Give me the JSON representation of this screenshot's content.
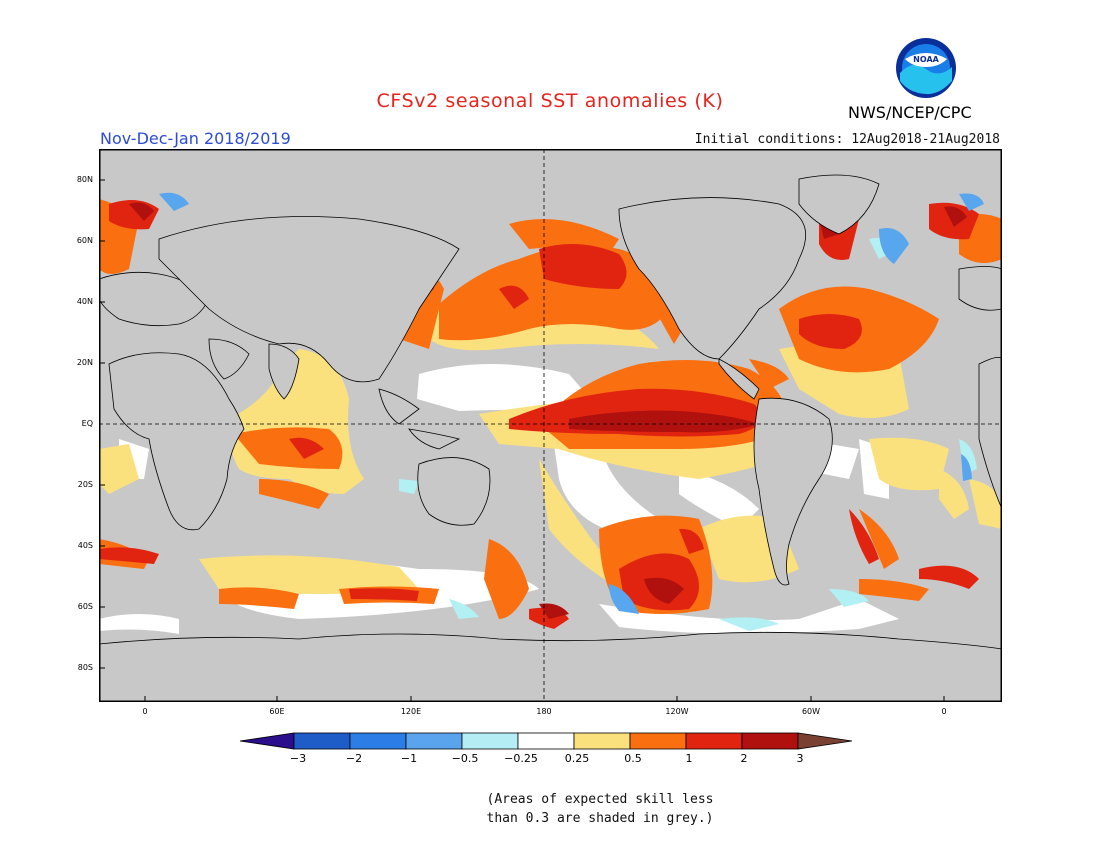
{
  "title": "CFSv2 seasonal SST anomalies (K)",
  "season": "Nov-Dec-Jan 2018/2019",
  "initial_conditions": "Initial conditions: 12Aug2018-21Aug2018",
  "agency": "NWS/NCEP/CPC",
  "logo_text": "NOAA",
  "map": {
    "lat_labels": [
      "80N",
      "60N",
      "40N",
      "20N",
      "EQ",
      "20S",
      "40S",
      "60S",
      "80S"
    ],
    "lon_labels": [
      "0",
      "60E",
      "120E",
      "180",
      "120W",
      "60W",
      "0"
    ],
    "colors": {
      "land": "#c8c8c8",
      "skill_mask": "#c8c8c8",
      "a_0_25": "#fbe17e",
      "a_0_5": "#fa6f10",
      "a_1": "#e02410",
      "a_2": "#b0100e",
      "n_0_25": "#b3f0f4",
      "n_0_5": "#58a6ee",
      "n_1": "#3a74dc"
    }
  },
  "colorbar": {
    "labels": [
      "−3",
      "−2",
      "−1",
      "−0.5",
      "−0.25",
      "0.25",
      "0.5",
      "1",
      "2",
      "3"
    ],
    "colors": [
      "#2a0e8c",
      "#1e5cc8",
      "#2d7de6",
      "#5aa4ee",
      "#b4eef4",
      "#ffffff",
      "#fbe17e",
      "#fa6f10",
      "#e02410",
      "#b0100e",
      "#7a4032"
    ]
  },
  "note": {
    "line1": "(Areas of expected skill less",
    "line2": "than 0.3 are shaded in grey.)"
  }
}
